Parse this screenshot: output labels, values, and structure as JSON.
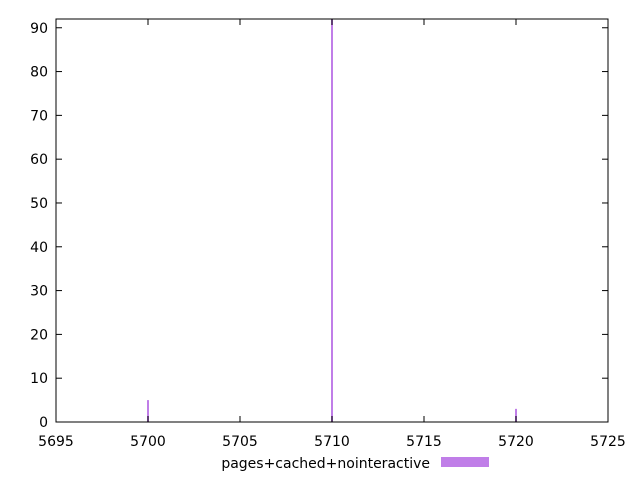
{
  "chart_data": {
    "type": "bar",
    "x": [
      5700,
      5710,
      5720
    ],
    "series": [
      {
        "name": "pages+cached+nointeractive",
        "values": [
          5,
          92,
          3
        ],
        "color": "#c07ee8"
      }
    ],
    "xlim": [
      5695,
      5725
    ],
    "ylim": [
      0,
      92
    ],
    "xticks": [
      5695,
      5700,
      5705,
      5710,
      5715,
      5720,
      5725
    ],
    "yticks": [
      0,
      10,
      20,
      30,
      40,
      50,
      60,
      70,
      80,
      90
    ],
    "legend_placement": "bottom-center",
    "grid": false
  }
}
